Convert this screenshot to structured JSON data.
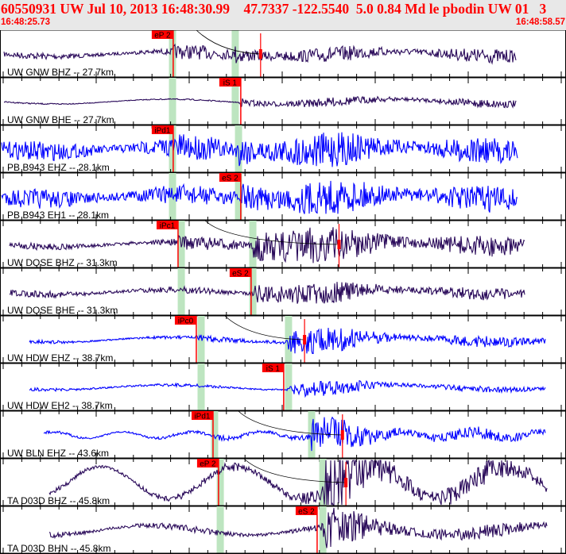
{
  "header": {
    "title": "60550931 UW Jul 10, 2013 16:48:30.99    47.7337 -122.5540  5.0 0.84 Md le pbodin UW 01   3",
    "start_time": "16:48:25.73",
    "end_time": "16:48:58.57"
  },
  "chart_data": {
    "type": "line",
    "x_unit": "seconds after 16:48",
    "xlim": [
      25.73,
      58.57
    ],
    "colors": {
      "pick": "#ff0000",
      "window": "#bde5c0",
      "broadband": "#2a0a5a",
      "short_period": "#0000ff",
      "header_bg": "#e8e8e8"
    },
    "traces": [
      {
        "label": "UW GNW BHZ -- 27.7km",
        "color": "#2a0a5a",
        "span": [
          25.96,
          55.7
        ],
        "pick": {
          "label": "eP 2",
          "time": 35.78
        },
        "windows": [
          35.74,
          39.38
        ],
        "amp_marker": 40.85
      },
      {
        "label": "UW GNW BHE -- 27.7km",
        "color": "#2a0a5a",
        "span": [
          25.96,
          55.7
        ],
        "pick": {
          "label": "iS 1",
          "time": 39.7
        },
        "windows": [
          35.74,
          39.38
        ]
      },
      {
        "label": "PB B943 EHZ -- 28.1km",
        "color": "#0000ff",
        "span": [
          25.8,
          55.8
        ],
        "pick": {
          "label": "iPd1",
          "time": 35.78
        },
        "windows": [
          35.74,
          39.57
        ]
      },
      {
        "label": "PB B943 EH1 -- 28.1km",
        "color": "#0000ff",
        "span": [
          25.8,
          55.8
        ],
        "pick": {
          "label": "eS 2",
          "time": 39.7
        },
        "windows": [
          35.74,
          39.57
        ]
      },
      {
        "label": "UW DQSE BHZ -- 31.3km",
        "color": "#2a0a5a",
        "span": [
          26.3,
          56.2
        ],
        "pick": {
          "label": "iPc1",
          "time": 36.06
        },
        "windows": [
          36.25,
          40.4
        ],
        "amp_marker": 45.4
      },
      {
        "label": "UW DQSE BHE -- 31.3km",
        "color": "#2a0a5a",
        "span": [
          26.3,
          56.2
        ],
        "pick": {
          "label": "eS 2",
          "time": 40.3
        },
        "windows": [
          36.25,
          40.4
        ]
      },
      {
        "label": "UW HDW EHZ -- 38.7km",
        "color": "#0000ff",
        "span": [
          27.44,
          57.4
        ],
        "pick": {
          "label": "iPc0",
          "time": 37.12
        },
        "windows": [
          37.4,
          42.47
        ],
        "amp_marker": 43.4
      },
      {
        "label": "UW HDW EH2 -- 38.7km",
        "color": "#0000ff",
        "span": [
          27.44,
          57.4
        ],
        "pick": {
          "label": "iS 1",
          "time": 42.19
        },
        "windows": [
          37.4,
          42.47
        ]
      },
      {
        "label": "UW BLN EHZ -- 43.6km",
        "color": "#0000ff",
        "span": [
          28.27,
          57.4
        ],
        "pick": {
          "label": "iPd1",
          "time": 38.09
        },
        "windows": [
          38.18,
          43.81
        ],
        "amp_marker": 45.6
      },
      {
        "label": "TA D03D BHZ -- 45.8km",
        "color": "#2a0a5a",
        "span": [
          28.59,
          57.5
        ],
        "pick": {
          "label": "eP 2",
          "time": 38.41
        },
        "windows": [
          38.51,
          44.46
        ],
        "amp_marker": 45.8
      },
      {
        "label": "TA D03D BHN -- 45.8km",
        "color": "#2a0a5a",
        "span": [
          28.59,
          57.5
        ],
        "pick": {
          "label": "eS 2",
          "time": 44.13
        },
        "windows": [
          38.51,
          44.46
        ]
      }
    ]
  }
}
